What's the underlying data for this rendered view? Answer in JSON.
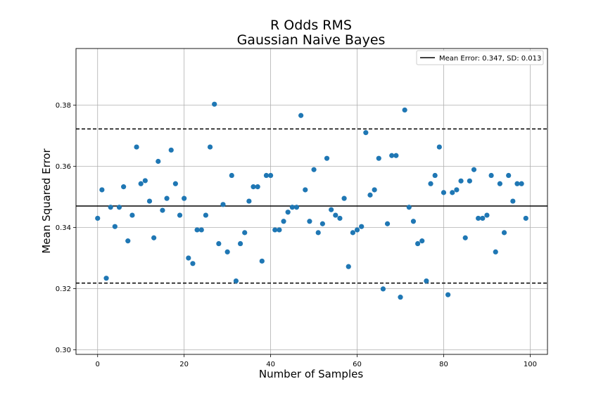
{
  "chart_data": {
    "type": "scatter",
    "title": "R Odds RMS",
    "subtitle": "Gaussian Naive Bayes",
    "xlabel": "Number of Samples",
    "ylabel": "Mean Squared Error",
    "xlim": [
      -5,
      104
    ],
    "ylim": [
      0.2985,
      0.3985
    ],
    "xticks": [
      0,
      20,
      40,
      60,
      80,
      100
    ],
    "yticks": [
      0.3,
      0.32,
      0.34,
      0.36,
      0.38
    ],
    "xtick_labels": [
      "0",
      "20",
      "40",
      "60",
      "80",
      "100"
    ],
    "ytick_labels": [
      "0.30",
      "0.32",
      "0.34",
      "0.36",
      "0.38"
    ],
    "grid": true,
    "legend": {
      "placement": "top-right",
      "entries": [
        "Mean Error: 0.347, SD: 0.013"
      ]
    },
    "mean_line": 0.347,
    "upper_line": 0.3722,
    "lower_line": 0.3218,
    "marker_color": "#1f77b4",
    "x": [
      0,
      1,
      2,
      3,
      4,
      5,
      6,
      7,
      8,
      9,
      10,
      11,
      12,
      13,
      14,
      15,
      16,
      17,
      18,
      19,
      20,
      21,
      22,
      23,
      24,
      25,
      26,
      27,
      28,
      29,
      30,
      31,
      32,
      33,
      34,
      35,
      36,
      37,
      38,
      39,
      40,
      41,
      42,
      43,
      44,
      45,
      46,
      47,
      48,
      49,
      50,
      51,
      52,
      53,
      54,
      55,
      56,
      57,
      58,
      59,
      60,
      61,
      62,
      63,
      64,
      65,
      66,
      67,
      68,
      69,
      70,
      71,
      72,
      73,
      74,
      75,
      76,
      77,
      78,
      79,
      80,
      81,
      82,
      83,
      84,
      85,
      86,
      87,
      88,
      89,
      90,
      91,
      92,
      93,
      94,
      95,
      96,
      97,
      98,
      99
    ],
    "y": [
      0.343,
      0.3523,
      0.3234,
      0.3466,
      0.3403,
      0.3466,
      0.3533,
      0.3356,
      0.344,
      0.3663,
      0.3543,
      0.3553,
      0.3486,
      0.3366,
      0.3616,
      0.3456,
      0.3495,
      0.3653,
      0.3543,
      0.344,
      0.3495,
      0.33,
      0.3282,
      0.3392,
      0.3392,
      0.344,
      0.3663,
      0.3803,
      0.3347,
      0.3475,
      0.332,
      0.357,
      0.3225,
      0.3347,
      0.3383,
      0.3486,
      0.3533,
      0.3533,
      0.329,
      0.357,
      0.357,
      0.3392,
      0.3392,
      0.342,
      0.345,
      0.3466,
      0.3466,
      0.3766,
      0.3523,
      0.342,
      0.3589,
      0.3383,
      0.3412,
      0.3626,
      0.3458,
      0.344,
      0.343,
      0.3495,
      0.3272,
      0.3383,
      0.3392,
      0.3403,
      0.371,
      0.3506,
      0.3523,
      0.3626,
      0.3199,
      0.3412,
      0.3635,
      0.3635,
      0.3172,
      0.3784,
      0.3466,
      0.342,
      0.3347,
      0.3356,
      0.3225,
      0.3543,
      0.357,
      0.3663,
      0.3514,
      0.318,
      0.3514,
      0.3523,
      0.3552,
      0.3366,
      0.3552,
      0.3589,
      0.343,
      0.343,
      0.344,
      0.357,
      0.332,
      0.3543,
      0.3383,
      0.357,
      0.3486,
      0.3543,
      0.3543,
      0.343
    ]
  }
}
